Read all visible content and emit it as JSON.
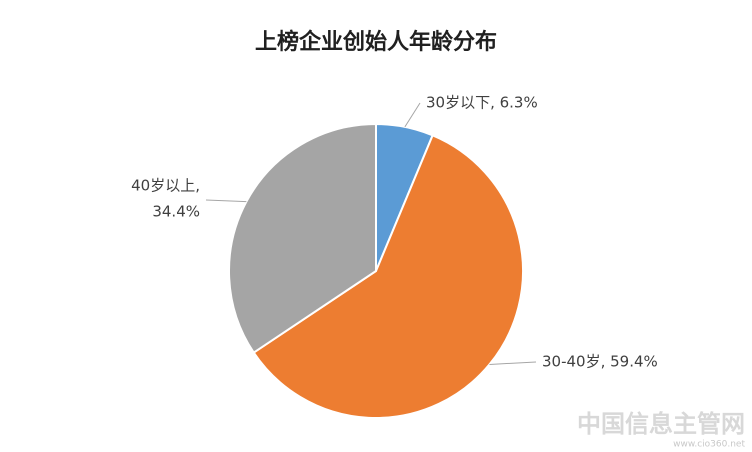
{
  "chart_data": {
    "type": "pie",
    "title": "上榜企业创始人年龄分布",
    "values": [
      6.3,
      59.4,
      34.4
    ],
    "value_labels": [
      [
        "30岁以下, 6.3%"
      ],
      [
        "30-40岁, 59.4%"
      ],
      [
        "40岁以上,",
        "34.4%"
      ]
    ],
    "colors": [
      "#5b9bd5",
      "#ed7d31",
      "#a5a5a5"
    ],
    "start_angle": 0,
    "direction": "clockwise"
  },
  "watermark": {
    "logo": "中国信息主管网",
    "url": "www.cio360.net"
  }
}
